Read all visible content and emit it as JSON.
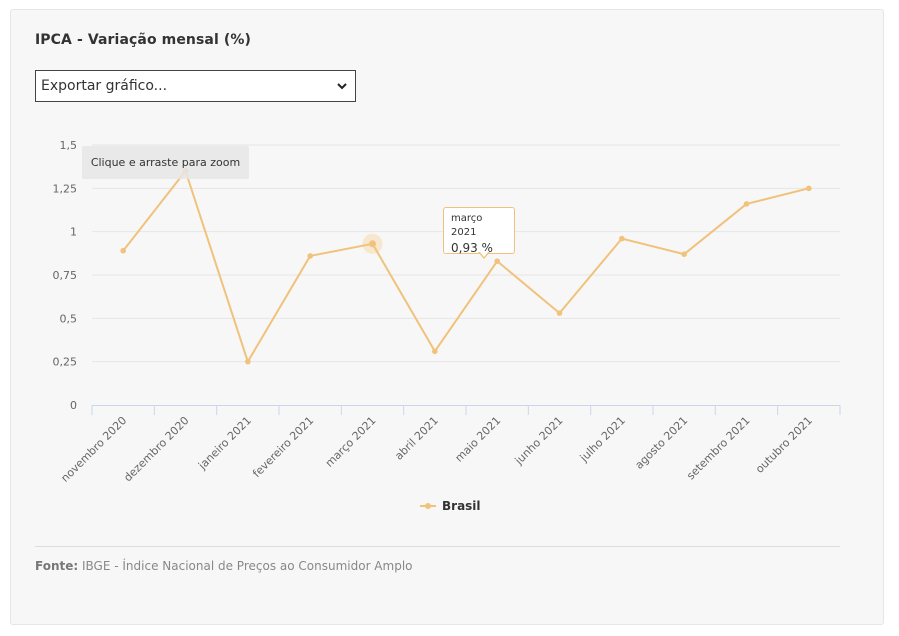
{
  "title": "IPCA - Variação mensal (%)",
  "export": {
    "label": "Exportar gráfico..."
  },
  "zoom_hint": "Clique e arraste para zoom",
  "tooltip": {
    "label": "março 2021",
    "value": "0,93 %"
  },
  "source": {
    "prefix": "Fonte:",
    "text": " IBGE - Índice Nacional de Preços ao Consumidor Amplo"
  },
  "colors": {
    "series": "#f0c27b",
    "highlight": "#f6e2c4",
    "grid": "#e6e6e6",
    "axis": "#ccd6eb"
  },
  "chart_data": {
    "type": "line",
    "title": "IPCA - Variação mensal (%)",
    "xlabel": "",
    "ylabel": "",
    "ylim": [
      0,
      1.5
    ],
    "yticks": [
      0,
      0.25,
      0.5,
      0.75,
      1,
      1.25,
      1.5
    ],
    "ytick_labels": [
      "0",
      "0,25",
      "0,5",
      "0,75",
      "1",
      "1,25",
      "1,5"
    ],
    "categories": [
      "novembro 2020",
      "dezembro 2020",
      "janeiro 2021",
      "fevereiro 2021",
      "março 2021",
      "abril 2021",
      "maio 2021",
      "junho 2021",
      "julho 2021",
      "agosto 2021",
      "setembro 2021",
      "outubro 2021"
    ],
    "series": [
      {
        "name": "Brasil",
        "values": [
          0.89,
          1.35,
          0.25,
          0.86,
          0.93,
          0.31,
          0.83,
          0.53,
          0.96,
          0.87,
          1.16,
          1.25
        ]
      }
    ],
    "highlighted_index": 4,
    "legend": "bottom-center",
    "grid": true
  }
}
